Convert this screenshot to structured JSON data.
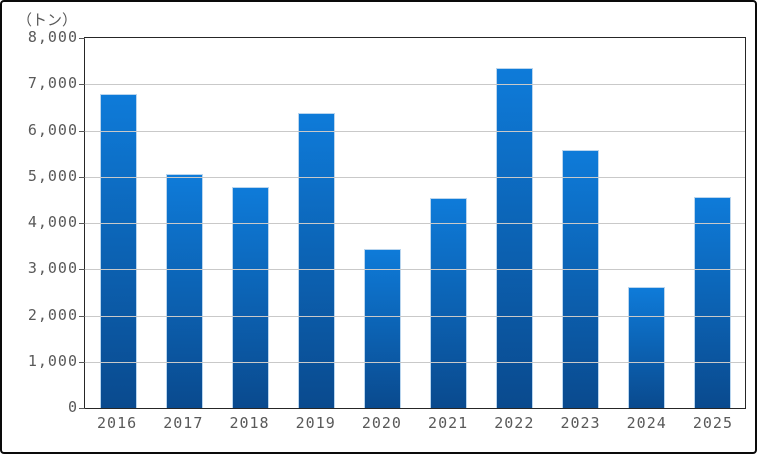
{
  "chart_data": {
    "type": "bar",
    "title": "",
    "unit_label": "（トン）",
    "xlabel": "",
    "ylabel": "（トン）",
    "categories": [
      "2016",
      "2017",
      "2018",
      "2019",
      "2020",
      "2021",
      "2022",
      "2023",
      "2024",
      "2025"
    ],
    "values": [
      6800,
      5050,
      4780,
      6370,
      3430,
      4540,
      7360,
      5580,
      2620,
      4570
    ],
    "ylim": [
      0,
      8000
    ],
    "ytick_step": 1000,
    "ytick_labels": [
      "0",
      "1,000",
      "2,000",
      "3,000",
      "4,000",
      "5,000",
      "6,000",
      "7,000",
      "8,000"
    ],
    "grid": true,
    "legend": false,
    "colors": {
      "bar_gradient_top": "#0e7bd9",
      "bar_gradient_bottom": "#0a4a8e",
      "bar_border": "#b9d5ee",
      "gridline": "#c9c9c9",
      "axis_text": "#595959",
      "plot_border": "#262626",
      "frame_border": "#0a0a0a",
      "background": "#ffffff"
    }
  }
}
